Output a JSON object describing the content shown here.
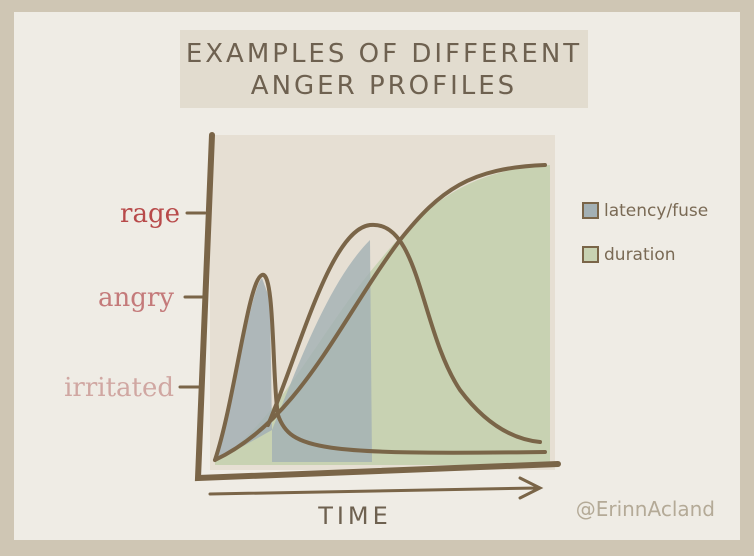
{
  "title": {
    "line1": "EXAMPLES OF DIFFERENT",
    "line2": "ANGER PROFILES"
  },
  "levels": [
    "rage",
    "angry",
    "irritated"
  ],
  "legend": [
    "latency/fuse",
    "duration"
  ],
  "x_label": "TIME",
  "credit": "@ErinnAcland"
}
